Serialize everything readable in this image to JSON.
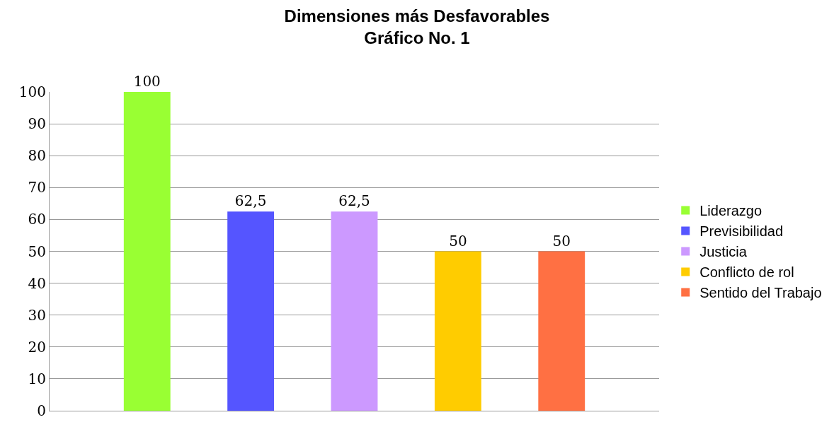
{
  "chart_data": {
    "type": "bar",
    "title": "Dimensiones más Desfavorables\nGráfico No. 1",
    "categories": [
      null
    ],
    "series": [
      {
        "name": "Liderazgo",
        "color": "#99ff33",
        "values": [
          100
        ],
        "value_labels": [
          "100"
        ]
      },
      {
        "name": "Previsibilidad",
        "color": "#5555ff",
        "values": [
          62.5
        ],
        "value_labels": [
          "62,5"
        ]
      },
      {
        "name": "Justicia",
        "color": "#cc99ff",
        "values": [
          62.5
        ],
        "value_labels": [
          "62,5"
        ]
      },
      {
        "name": "Conflicto de rol",
        "color": "#ffcc00",
        "values": [
          50
        ],
        "value_labels": [
          "50"
        ]
      },
      {
        "name": "Sentido del Trabajo",
        "color": "#ff7043",
        "values": [
          50
        ],
        "value_labels": [
          "50"
        ]
      }
    ],
    "ylim": [
      0,
      100
    ],
    "yticks": [
      0,
      10,
      20,
      30,
      40,
      50,
      60,
      70,
      80,
      90,
      100
    ],
    "grid": "y",
    "legend": "right",
    "tick_labels": "y"
  }
}
